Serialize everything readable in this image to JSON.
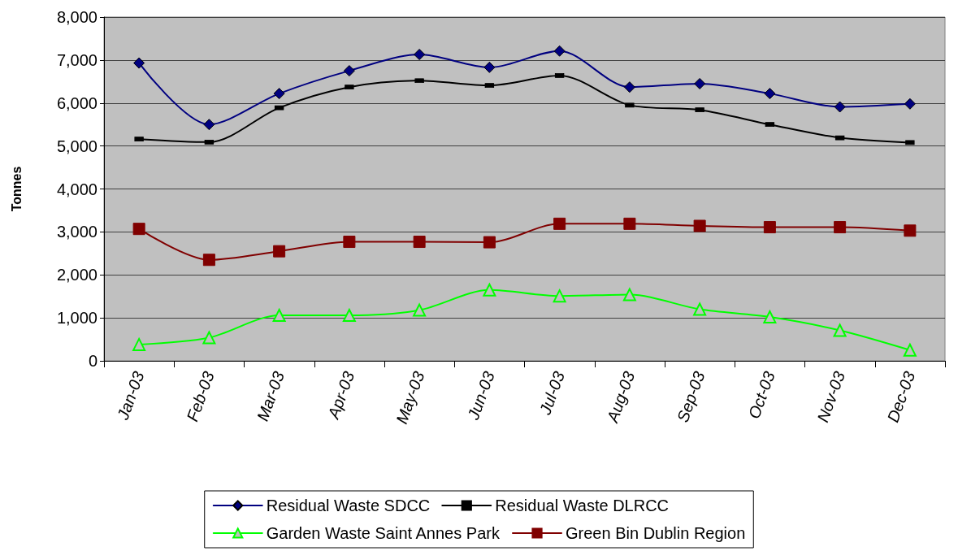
{
  "chart_data": {
    "type": "line",
    "ylabel": "Tonnes",
    "categories": [
      "Jan-03",
      "Feb-03",
      "Mar-03",
      "Apr-03",
      "May-03",
      "Jun-03",
      "Jul-03",
      "Aug-03",
      "Sep-03",
      "Oct-03",
      "Nov-03",
      "Dec-03"
    ],
    "series": [
      {
        "name": "Residual Waste SDCC",
        "color": "#000080",
        "marker": "diamond",
        "values": [
          6930,
          5500,
          6220,
          6750,
          7130,
          6830,
          7210,
          6370,
          6450,
          6220,
          5910,
          5980
        ]
      },
      {
        "name": "Residual Waste DLRCC",
        "color": "#000000",
        "marker": "square",
        "values": [
          5160,
          5090,
          5890,
          6370,
          6520,
          6410,
          6640,
          5950,
          5840,
          5500,
          5190,
          5080
        ]
      },
      {
        "name": "Garden Waste Saint Annes Park",
        "color": "#00ff00",
        "marker": "triangle",
        "values": [
          380,
          540,
          1060,
          1060,
          1180,
          1650,
          1510,
          1540,
          1200,
          1020,
          710,
          250
        ]
      },
      {
        "name": "Green Bin Dublin Region",
        "color": "#800000",
        "marker": "square",
        "values": [
          3070,
          2350,
          2550,
          2770,
          2770,
          2760,
          3190,
          3190,
          3140,
          3110,
          3110,
          3030
        ]
      }
    ],
    "ylim": [
      0,
      8000
    ],
    "yticks": [
      0,
      {
        "value": 1000,
        "label": "1,000"
      },
      {
        "value": 2000,
        "label": "2,000"
      },
      {
        "value": 3000,
        "label": "3,000"
      },
      {
        "value": 4000,
        "label": "4,000"
      },
      {
        "value": 5000,
        "label": "5,000"
      },
      {
        "value": 6000,
        "label": "6,000"
      },
      {
        "value": 7000,
        "label": "7,000"
      },
      {
        "value": 8000,
        "label": "8,000"
      }
    ],
    "grid": "y",
    "legend": "bottom",
    "line_style": "solid"
  }
}
